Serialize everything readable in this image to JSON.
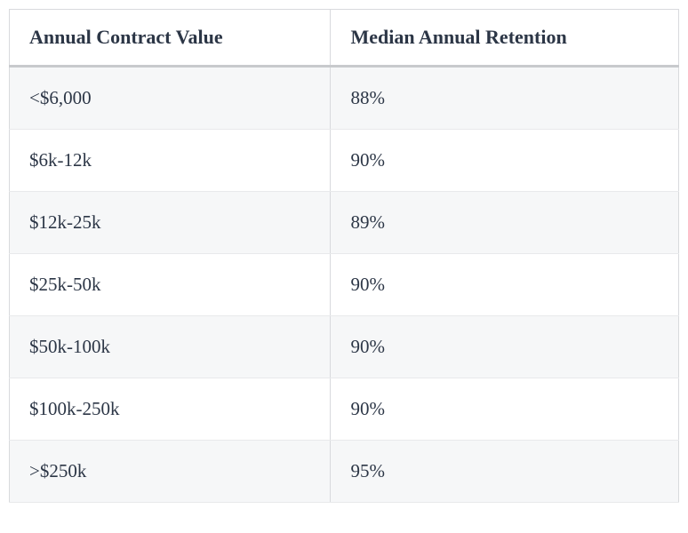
{
  "table": {
    "columns": [
      "Annual Contract Value",
      "Median Annual Retention"
    ],
    "rows": [
      [
        "<$6,000",
        "88%"
      ],
      [
        "$6k-12k",
        "90%"
      ],
      [
        "$12k-25k",
        "89%"
      ],
      [
        "$25k-50k",
        "90%"
      ],
      [
        "$50k-100k",
        "90%"
      ],
      [
        "$100k-250k",
        "90%"
      ],
      [
        ">$250k",
        "95%"
      ]
    ],
    "header_bg": "#ffffff",
    "row_odd_bg": "#f6f7f8",
    "row_even_bg": "#ffffff",
    "text_color": "#2c3646",
    "border_color": "#d8dadd",
    "header_fontsize": 22,
    "cell_fontsize": 21,
    "font_family": "Georgia, serif"
  }
}
